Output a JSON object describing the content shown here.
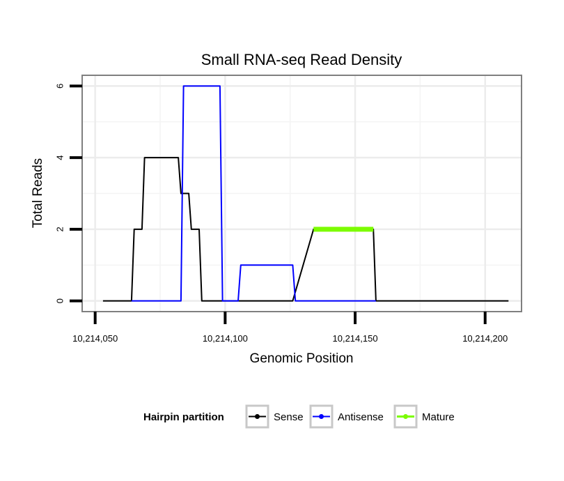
{
  "chart_data": {
    "type": "line",
    "title": "Small RNA-seq Read Density",
    "xlabel": "Genomic Position",
    "ylabel": "Total Reads",
    "xlim": [
      10214045,
      10214214
    ],
    "ylim": [
      -0.3,
      6.3
    ],
    "x_ticks": [
      10214050,
      10214100,
      10214150,
      10214200
    ],
    "x_tick_labels": [
      "10,214,050",
      "10,214,100",
      "10,214,150",
      "10,214,200"
    ],
    "y_ticks": [
      0,
      2,
      4,
      6
    ],
    "y_tick_labels": [
      "0",
      "2",
      "4",
      "6"
    ],
    "grid": true,
    "legend": {
      "title": "Hairpin partition",
      "position": "bottom",
      "entries": [
        "Sense",
        "Antisense",
        "Mature"
      ]
    },
    "series": [
      {
        "name": "Sense",
        "color": "#000000",
        "x": [
          10214053,
          10214064,
          10214065,
          10214068,
          10214069,
          10214082,
          10214083,
          10214086,
          10214087,
          10214090,
          10214091,
          10214108,
          10214117,
          10214126,
          10214134,
          10214145,
          10214157,
          10214158,
          10214209
        ],
        "y": [
          0,
          0,
          2,
          2,
          4,
          4,
          3,
          3,
          2,
          2,
          0,
          0,
          0,
          0,
          2,
          2,
          2,
          0,
          0
        ]
      },
      {
        "name": "Antisense",
        "color": "#0000ff",
        "x": [
          10214064,
          10214083,
          10214084,
          10214098,
          10214099,
          10214105,
          10214106,
          10214126,
          10214127,
          10214133,
          10214158
        ],
        "y": [
          0,
          0,
          6,
          6,
          0,
          0,
          1,
          1,
          0,
          0,
          0
        ]
      },
      {
        "name": "Mature",
        "color": "#7cfc00",
        "x": [
          10214134,
          10214157
        ],
        "y": [
          2,
          2
        ]
      }
    ]
  }
}
